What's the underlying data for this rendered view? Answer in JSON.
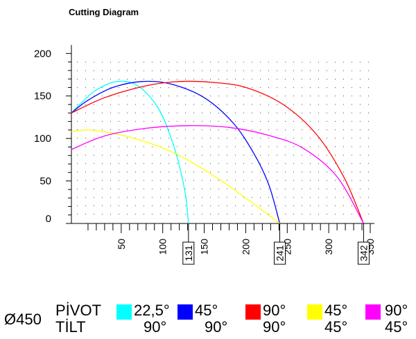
{
  "header": {
    "title": "Cutting Diagram"
  },
  "legend": {
    "diameter": "Ø450",
    "row_labels": [
      "PİVOT",
      "TİLT"
    ],
    "items": [
      {
        "pivot": "22,5°",
        "tilt": "90°",
        "color": "#00ffff"
      },
      {
        "pivot": "45°",
        "tilt": "90°",
        "color": "#0000ff"
      },
      {
        "pivot": "90°",
        "tilt": "90°",
        "color": "#ff0000"
      },
      {
        "pivot": "45°",
        "tilt": "45°",
        "color": "#ffff00"
      },
      {
        "pivot": "90°",
        "tilt": "45°",
        "color": "#ff00ff"
      }
    ]
  },
  "chart_data": {
    "type": "line",
    "title": "Cutting Diagram",
    "xlim": [
      -10,
      355
    ],
    "ylim": [
      0,
      210
    ],
    "x_ticks": [
      50,
      100,
      150,
      200,
      250,
      300,
      350
    ],
    "y_ticks": [
      0,
      50,
      100,
      150,
      200
    ],
    "grid": "dotted",
    "legend_position": "bottom",
    "markers": [
      "131",
      "241",
      "342"
    ],
    "series": [
      {
        "color": "#00ffff",
        "x": [
          -10,
          0,
          20,
          45,
          70,
          95,
          112,
          122,
          128,
          131
        ],
        "y": [
          130,
          140,
          157,
          167,
          162,
          135,
          95,
          60,
          30,
          0
        ]
      },
      {
        "color": "#0000ff",
        "x": [
          -10,
          10,
          40,
          75,
          110,
          150,
          185,
          210,
          228,
          241
        ],
        "y": [
          130,
          145,
          160,
          167,
          164,
          148,
          118,
          82,
          45,
          0
        ]
      },
      {
        "color": "#ff0000",
        "x": [
          -10,
          30,
          80,
          120,
          160,
          200,
          245,
          285,
          318,
          342
        ],
        "y": [
          130,
          148,
          162,
          167,
          166,
          160,
          140,
          105,
          55,
          0
        ]
      },
      {
        "color": "#ffff00",
        "x": [
          -10,
          10,
          40,
          80,
          120,
          160,
          200,
          241
        ],
        "y": [
          108,
          110,
          106,
          96,
          80,
          57,
          30,
          0
        ]
      },
      {
        "color": "#ff00ff",
        "x": [
          -10,
          30,
          80,
          130,
          180,
          230,
          270,
          310,
          342
        ],
        "y": [
          87,
          103,
          112,
          115,
          113,
          103,
          88,
          55,
          0
        ]
      }
    ]
  }
}
